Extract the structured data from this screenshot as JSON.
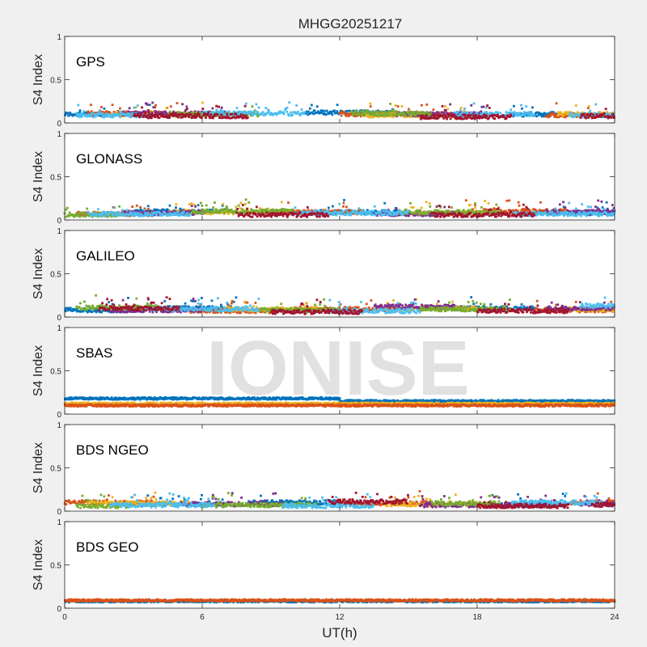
{
  "chart_data": {
    "type": "scatter",
    "title": "MHGG20251217",
    "xlabel": "UT(h)",
    "xlim": [
      0,
      24
    ],
    "xticks": [
      0,
      6,
      12,
      18,
      24
    ],
    "watermark": "IONISE",
    "series_colors": [
      "#0072BD",
      "#D95319",
      "#EDB120",
      "#7E2F8E",
      "#77AC30",
      "#4DBEEE",
      "#A2142F"
    ],
    "panels": [
      {
        "label": "GPS",
        "ylabel": "S4 Index",
        "ylim": [
          0,
          1
        ],
        "yticks": [
          "0",
          "0.5",
          "1"
        ],
        "series": [
          {
            "color": "#0072BD",
            "segments": [
              [
                0.0,
                4.0,
                0.1
              ],
              [
                10.5,
                14.5,
                0.12
              ],
              [
                19.5,
                21.5,
                0.1
              ]
            ]
          },
          {
            "color": "#D95319",
            "segments": [
              [
                1.0,
                5.0,
                0.11
              ],
              [
                12.0,
                16.5,
                0.1
              ],
              [
                21.0,
                23.0,
                0.09
              ]
            ]
          },
          {
            "color": "#EDB120",
            "segments": [
              [
                2.0,
                6.5,
                0.1
              ],
              [
                13.0,
                17.5,
                0.09
              ],
              [
                21.5,
                24.0,
                0.1
              ]
            ]
          },
          {
            "color": "#7E2F8E",
            "segments": [
              [
                2.5,
                7.0,
                0.11
              ],
              [
                14.5,
                18.5,
                0.1
              ]
            ]
          },
          {
            "color": "#77AC30",
            "segments": [
              [
                4.5,
                8.5,
                0.1
              ],
              [
                12.5,
                16.0,
                0.11
              ]
            ]
          },
          {
            "color": "#4DBEEE",
            "segments": [
              [
                0.5,
                3.5,
                0.09
              ],
              [
                6.0,
                10.5,
                0.11
              ],
              [
                17.0,
                20.5,
                0.1
              ],
              [
                22.0,
                24.0,
                0.09
              ]
            ]
          },
          {
            "color": "#A2142F",
            "segments": [
              [
                3.0,
                8.0,
                0.08
              ],
              [
                15.5,
                19.5,
                0.07
              ],
              [
                22.5,
                24.0,
                0.08
              ]
            ]
          }
        ]
      },
      {
        "label": "GLONASS",
        "ylabel": "S4 Index",
        "ylim": [
          0,
          1
        ],
        "yticks": [
          "0",
          "0.5",
          "1"
        ],
        "series": [
          {
            "color": "#0072BD",
            "segments": [
              [
                3.0,
                7.0,
                0.1
              ],
              [
                11.0,
                14.5,
                0.09
              ],
              [
                20.5,
                24.0,
                0.08
              ]
            ]
          },
          {
            "color": "#D95319",
            "segments": [
              [
                0.5,
                4.0,
                0.07
              ],
              [
                9.0,
                13.0,
                0.09
              ],
              [
                17.5,
                22.0,
                0.1
              ]
            ]
          },
          {
            "color": "#EDB120",
            "segments": [
              [
                4.5,
                9.5,
                0.09
              ],
              [
                15.0,
                18.5,
                0.08
              ]
            ]
          },
          {
            "color": "#7E2F8E",
            "segments": [
              [
                2.5,
                6.0,
                0.08
              ],
              [
                13.5,
                17.0,
                0.07
              ],
              [
                21.0,
                24.0,
                0.09
              ]
            ]
          },
          {
            "color": "#77AC30",
            "segments": [
              [
                0.0,
                2.5,
                0.06
              ],
              [
                5.5,
                10.0,
                0.1
              ],
              [
                14.5,
                19.0,
                0.09
              ]
            ]
          },
          {
            "color": "#4DBEEE",
            "segments": [
              [
                1.0,
                5.5,
                0.07
              ],
              [
                10.0,
                15.0,
                0.08
              ],
              [
                19.5,
                24.0,
                0.07
              ]
            ]
          },
          {
            "color": "#A2142F",
            "segments": [
              [
                7.5,
                11.5,
                0.06
              ],
              [
                16.0,
                20.5,
                0.06
              ]
            ]
          }
        ]
      },
      {
        "label": "GALILEO",
        "ylabel": "S4 Index",
        "ylim": [
          0,
          1
        ],
        "yticks": [
          "0",
          "0.5",
          "1"
        ],
        "series": [
          {
            "color": "#0072BD",
            "segments": [
              [
                0.0,
                3.5,
                0.08
              ],
              [
                4.0,
                7.5,
                0.1
              ],
              [
                17.0,
                20.5,
                0.1
              ]
            ]
          },
          {
            "color": "#D95319",
            "segments": [
              [
                5.5,
                9.0,
                0.07
              ],
              [
                10.0,
                14.5,
                0.09
              ],
              [
                20.5,
                24.0,
                0.08
              ]
            ]
          },
          {
            "color": "#EDB120",
            "segments": [
              [
                7.0,
                11.0,
                0.09
              ],
              [
                14.0,
                18.0,
                0.1
              ],
              [
                22.0,
                24.0,
                0.09
              ]
            ]
          },
          {
            "color": "#7E2F8E",
            "segments": [
              [
                2.0,
                6.0,
                0.08
              ],
              [
                13.5,
                17.0,
                0.12
              ],
              [
                21.0,
                24.0,
                0.1
              ]
            ]
          },
          {
            "color": "#77AC30",
            "segments": [
              [
                0.5,
                4.0,
                0.11
              ],
              [
                8.5,
                12.0,
                0.08
              ],
              [
                15.5,
                19.5,
                0.09
              ]
            ]
          },
          {
            "color": "#4DBEEE",
            "segments": [
              [
                3.5,
                8.5,
                0.09
              ],
              [
                11.5,
                15.5,
                0.07
              ],
              [
                22.5,
                24.0,
                0.13
              ]
            ]
          },
          {
            "color": "#A2142F",
            "segments": [
              [
                1.5,
                5.0,
                0.1
              ],
              [
                9.0,
                13.0,
                0.06
              ],
              [
                18.0,
                22.0,
                0.07
              ]
            ]
          }
        ]
      },
      {
        "label": "SBAS",
        "ylabel": "S4 Index",
        "ylim": [
          0,
          1
        ],
        "yticks": [
          "0",
          "0.5",
          "1"
        ],
        "series": [
          {
            "color": "#0072BD",
            "segments": [
              [
                0.0,
                12.0,
                0.18
              ],
              [
                12.0,
                24.0,
                0.15
              ]
            ]
          },
          {
            "color": "#EDB120",
            "segments": [
              [
                0.0,
                24.0,
                0.12
              ]
            ]
          },
          {
            "color": "#D95319",
            "segments": [
              [
                0.0,
                24.0,
                0.1
              ]
            ]
          }
        ]
      },
      {
        "label": "BDS NGEO",
        "ylabel": "S4 Index",
        "ylim": [
          0,
          1
        ],
        "yticks": [
          "0",
          "0.5",
          "1"
        ],
        "series": [
          {
            "color": "#0072BD",
            "segments": [
              [
                3.0,
                7.0,
                0.08
              ],
              [
                8.0,
                12.0,
                0.1
              ],
              [
                18.5,
                22.0,
                0.07
              ]
            ]
          },
          {
            "color": "#D95319",
            "segments": [
              [
                0.0,
                4.0,
                0.1
              ],
              [
                12.0,
                16.0,
                0.09
              ],
              [
                22.0,
                24.0,
                0.1
              ]
            ]
          },
          {
            "color": "#EDB120",
            "segments": [
              [
                1.0,
                5.5,
                0.09
              ],
              [
                14.0,
                18.0,
                0.08
              ]
            ]
          },
          {
            "color": "#7E2F8E",
            "segments": [
              [
                5.0,
                9.5,
                0.08
              ],
              [
                15.5,
                21.0,
                0.07
              ],
              [
                22.5,
                24.0,
                0.08
              ]
            ]
          },
          {
            "color": "#77AC30",
            "segments": [
              [
                0.5,
                3.0,
                0.06
              ],
              [
                6.0,
                11.0,
                0.07
              ],
              [
                16.0,
                19.0,
                0.09
              ]
            ]
          },
          {
            "color": "#4DBEEE",
            "segments": [
              [
                2.0,
                6.5,
                0.07
              ],
              [
                9.5,
                13.5,
                0.06
              ],
              [
                19.5,
                23.5,
                0.1
              ]
            ]
          },
          {
            "color": "#A2142F",
            "segments": [
              [
                11.5,
                15.0,
                0.11
              ],
              [
                18.0,
                22.0,
                0.06
              ],
              [
                23.0,
                24.0,
                0.07
              ]
            ]
          }
        ]
      },
      {
        "label": "BDS GEO",
        "ylabel": "S4 Index",
        "ylim": [
          0,
          1
        ],
        "yticks": [
          "0",
          "0.5",
          "1"
        ],
        "series": [
          {
            "color": "#0072BD",
            "segments": [
              [
                0.0,
                24.0,
                0.08
              ]
            ]
          },
          {
            "color": "#D95319",
            "segments": [
              [
                0.0,
                24.0,
                0.09
              ]
            ]
          }
        ]
      }
    ]
  }
}
